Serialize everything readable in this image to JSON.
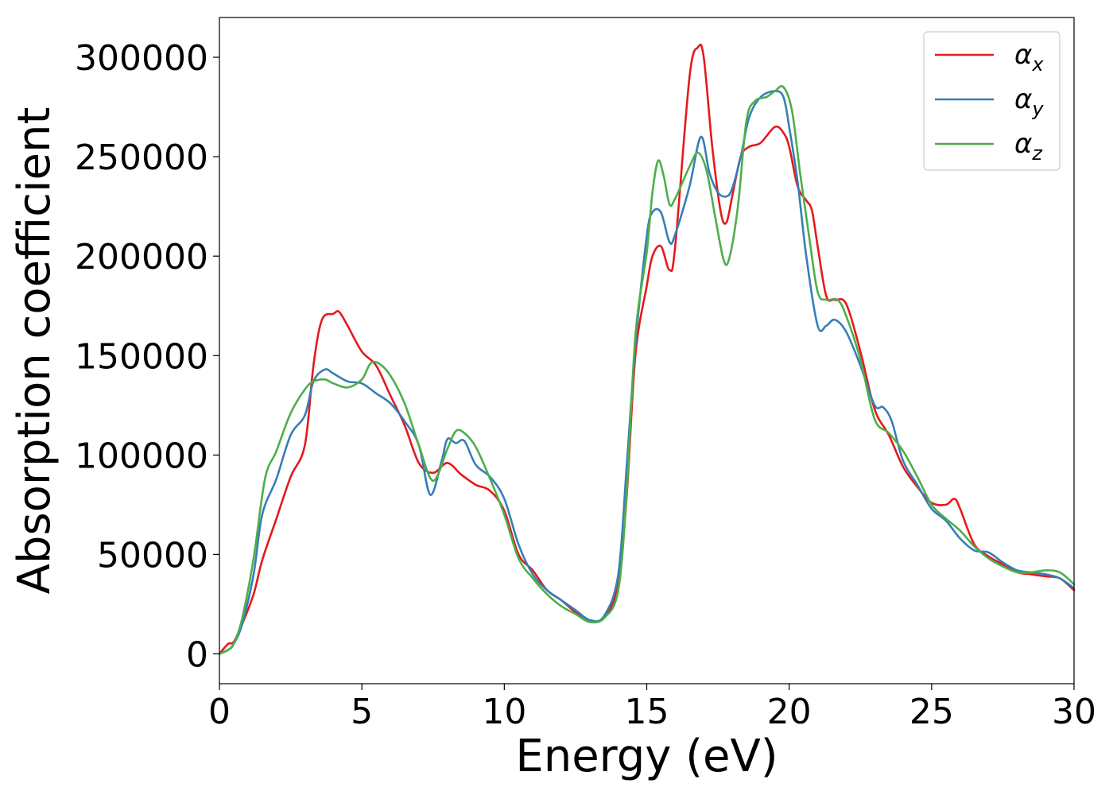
{
  "chart_data": {
    "type": "line",
    "title": "",
    "xlabel": "Energy (eV)",
    "ylabel": "Absorption coefficient",
    "xlim": [
      0,
      30
    ],
    "ylim": [
      -15000,
      320000
    ],
    "xticks": [
      0,
      5,
      10,
      15,
      20,
      25,
      30
    ],
    "xtick_labels": [
      "0",
      "5",
      "10",
      "15",
      "20",
      "25",
      "30"
    ],
    "yticks": [
      0,
      50000,
      100000,
      150000,
      200000,
      250000,
      300000
    ],
    "ytick_labels": [
      "0",
      "50000",
      "100000",
      "150000",
      "200000",
      "250000",
      "300000"
    ],
    "grid": false,
    "legend_position": "top-right",
    "series": [
      {
        "name": "αx",
        "symbol": "α",
        "subscript": "x",
        "color": "#e41a1c",
        "x": [
          0,
          0.3,
          0.5,
          0.8,
          1.2,
          1.5,
          2.0,
          2.5,
          3.0,
          3.3,
          3.6,
          4.0,
          4.2,
          4.5,
          5.0,
          5.5,
          6.0,
          6.5,
          7.0,
          7.5,
          8.0,
          8.5,
          9.0,
          9.5,
          10.0,
          10.5,
          11.0,
          11.5,
          12.0,
          12.5,
          13.0,
          13.5,
          14.0,
          14.3,
          14.6,
          15.0,
          15.2,
          15.5,
          15.8,
          16.0,
          16.5,
          16.8,
          17.0,
          17.3,
          17.6,
          17.8,
          18.0,
          18.3,
          18.6,
          19.0,
          19.5,
          19.8,
          20.0,
          20.3,
          20.6,
          20.8,
          21.0,
          21.3,
          21.6,
          22.0,
          22.5,
          23.0,
          23.5,
          24.0,
          24.5,
          25.0,
          25.5,
          25.8,
          26.0,
          26.5,
          27.0,
          27.5,
          28.0,
          28.5,
          29.0,
          29.5,
          30.0
        ],
        "y": [
          0,
          5000,
          6000,
          15000,
          30000,
          47000,
          68000,
          89000,
          105000,
          145000,
          168000,
          171000,
          172000,
          165000,
          152000,
          145000,
          130000,
          115000,
          96000,
          91000,
          96000,
          90000,
          85000,
          82000,
          72000,
          50000,
          42000,
          32000,
          27000,
          21000,
          17000,
          18000,
          35000,
          80000,
          150000,
          185000,
          200000,
          205000,
          193000,
          205000,
          290000,
          305000,
          300000,
          255000,
          222000,
          217000,
          230000,
          250000,
          255000,
          257000,
          265000,
          262000,
          255000,
          235000,
          228000,
          223000,
          205000,
          180000,
          178000,
          176000,
          152000,
          123000,
          110000,
          94000,
          84000,
          76000,
          75000,
          78000,
          73000,
          55000,
          49000,
          45000,
          41000,
          40000,
          39000,
          38000,
          32000
        ]
      },
      {
        "name": "αy",
        "symbol": "α",
        "subscript": "y",
        "color": "#377eb8",
        "x": [
          0,
          0.3,
          0.5,
          0.8,
          1.2,
          1.5,
          2.0,
          2.5,
          3.0,
          3.3,
          3.7,
          4.0,
          4.5,
          5.0,
          5.5,
          6.0,
          6.5,
          7.0,
          7.4,
          7.8,
          8.0,
          8.3,
          8.6,
          9.0,
          9.5,
          10.0,
          10.5,
          11.0,
          11.5,
          12.0,
          12.5,
          13.0,
          13.5,
          14.0,
          14.3,
          14.6,
          15.0,
          15.2,
          15.5,
          15.8,
          16.0,
          16.5,
          16.9,
          17.2,
          17.5,
          17.8,
          18.0,
          18.3,
          18.6,
          19.0,
          19.5,
          19.8,
          20.0,
          20.3,
          20.6,
          21.0,
          21.3,
          21.6,
          22.0,
          22.5,
          23.0,
          23.3,
          23.6,
          24.0,
          24.5,
          25.0,
          25.5,
          26.0,
          26.5,
          27.0,
          27.5,
          28.0,
          28.5,
          29.0,
          29.5,
          30.0
        ],
        "y": [
          0,
          2000,
          5000,
          15000,
          40000,
          70000,
          88000,
          110000,
          120000,
          137000,
          143000,
          141000,
          137000,
          136000,
          131000,
          126000,
          117000,
          105000,
          80000,
          97000,
          108000,
          106000,
          107000,
          95000,
          89000,
          78000,
          55000,
          40000,
          32000,
          27000,
          22000,
          17000,
          19000,
          40000,
          95000,
          155000,
          210000,
          222000,
          222000,
          207000,
          211000,
          235000,
          260000,
          242000,
          232000,
          230000,
          234000,
          250000,
          270000,
          280000,
          283000,
          280000,
          265000,
          237000,
          200000,
          165000,
          165000,
          168000,
          162000,
          145000,
          125000,
          124000,
          117000,
          97000,
          85000,
          73000,
          67000,
          58000,
          52000,
          51000,
          46000,
          42000,
          41000,
          40000,
          38000,
          33000
        ]
      },
      {
        "name": "αz",
        "symbol": "α",
        "subscript": "z",
        "color": "#4daf4a",
        "x": [
          0,
          0.3,
          0.5,
          0.8,
          1.2,
          1.6,
          2.0,
          2.5,
          3.0,
          3.3,
          3.7,
          4.0,
          4.5,
          5.0,
          5.3,
          5.6,
          6.0,
          6.5,
          7.0,
          7.5,
          8.0,
          8.3,
          8.6,
          9.0,
          9.5,
          10.0,
          10.5,
          11.0,
          11.5,
          12.0,
          12.5,
          13.0,
          13.5,
          14.0,
          14.3,
          14.6,
          15.0,
          15.2,
          15.4,
          15.6,
          15.8,
          16.0,
          16.5,
          16.8,
          17.1,
          17.4,
          17.7,
          17.9,
          18.2,
          18.5,
          18.8,
          19.2,
          19.5,
          19.8,
          20.1,
          20.4,
          20.7,
          21.0,
          21.3,
          21.7,
          22.0,
          22.5,
          23.0,
          23.5,
          24.0,
          24.5,
          25.0,
          25.5,
          26.0,
          26.5,
          27.0,
          27.5,
          28.0,
          28.5,
          29.0,
          29.5,
          30.0
        ],
        "y": [
          0,
          2000,
          5000,
          18000,
          48000,
          88000,
          102000,
          121000,
          133000,
          137000,
          138000,
          136000,
          134000,
          138000,
          146000,
          146000,
          140000,
          126000,
          105000,
          87000,
          103000,
          112000,
          111000,
          104000,
          88000,
          70000,
          48000,
          38000,
          30000,
          24000,
          20000,
          16000,
          18000,
          32000,
          82000,
          160000,
          202000,
          232000,
          248000,
          240000,
          226000,
          229000,
          245000,
          252000,
          243000,
          220000,
          198000,
          199000,
          225000,
          268000,
          278000,
          280000,
          283000,
          285000,
          273000,
          240000,
          210000,
          182000,
          178000,
          178000,
          170000,
          148000,
          118000,
          111000,
          102000,
          89000,
          75000,
          68000,
          62000,
          54000,
          48000,
          44000,
          41000,
          41000,
          42000,
          41000,
          35000
        ]
      }
    ]
  }
}
